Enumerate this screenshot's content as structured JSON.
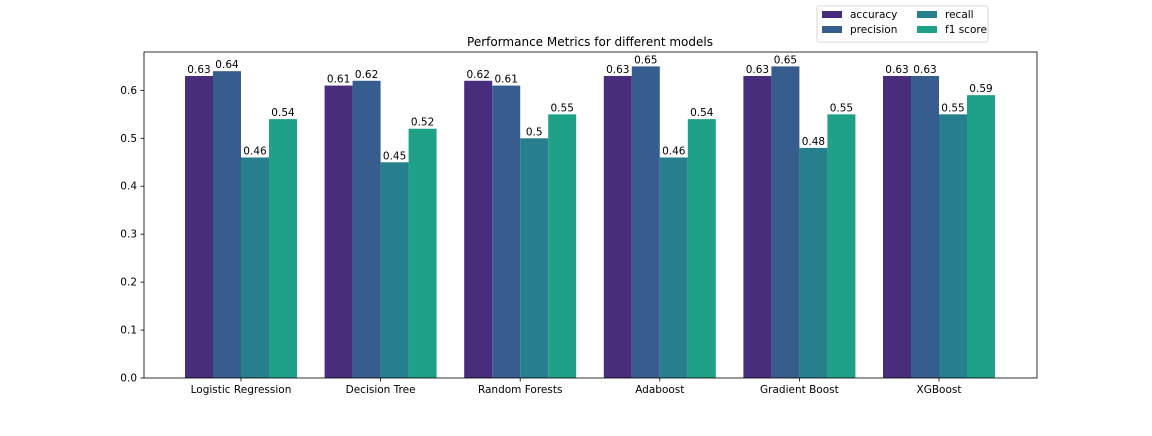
{
  "chart_data": {
    "type": "bar",
    "title": "Performance Metrics for different models",
    "xlabel": "",
    "ylabel": "",
    "ylim": [
      0,
      0.68
    ],
    "yticks": [
      0.0,
      0.1,
      0.2,
      0.3,
      0.4,
      0.5,
      0.6
    ],
    "ytick_labels": [
      "0.0",
      "0.1",
      "0.2",
      "0.3",
      "0.4",
      "0.5",
      "0.6"
    ],
    "grid": false,
    "legend_position": "top-right, above plot",
    "categories": [
      "Logistic Regression",
      "Decision Tree",
      "Random Forests",
      "Adaboost",
      "Gradient Boost",
      "XGBoost"
    ],
    "series": [
      {
        "name": "accuracy",
        "color": "#472d7b",
        "values": [
          0.63,
          0.61,
          0.62,
          0.63,
          0.63,
          0.63
        ],
        "labels": [
          "0.63",
          "0.61",
          "0.62",
          "0.63",
          "0.63",
          "0.63"
        ]
      },
      {
        "name": "precision",
        "color": "#375c8e",
        "values": [
          0.64,
          0.62,
          0.61,
          0.65,
          0.65,
          0.63
        ],
        "labels": [
          "0.64",
          "0.62",
          "0.61",
          "0.65",
          "0.65",
          "0.63"
        ]
      },
      {
        "name": "recall",
        "color": "#277f8e",
        "values": [
          0.46,
          0.45,
          0.5,
          0.46,
          0.48,
          0.55
        ],
        "labels": [
          "0.46",
          "0.45",
          "0.5",
          "0.46",
          "0.48",
          "0.55"
        ]
      },
      {
        "name": "f1 score",
        "color": "#1fa187",
        "values": [
          0.54,
          0.52,
          0.55,
          0.54,
          0.55,
          0.59
        ],
        "labels": [
          "0.54",
          "0.52",
          "0.55",
          "0.54",
          "0.55",
          "0.59"
        ]
      }
    ]
  }
}
